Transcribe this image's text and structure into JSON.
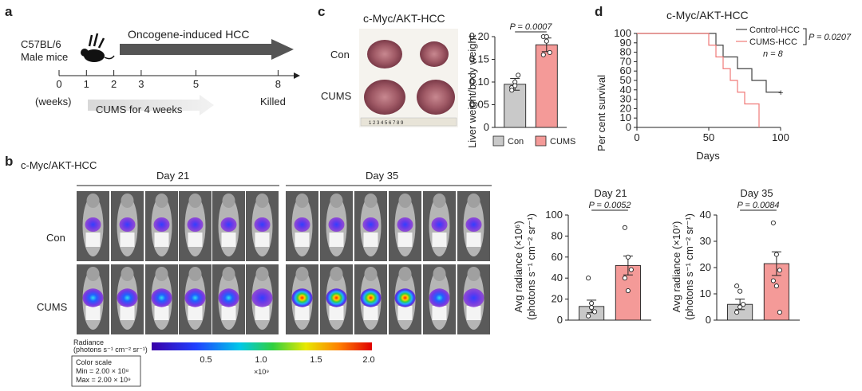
{
  "panel_a": {
    "letter": "a",
    "mouse_line1": "C57BL/6",
    "mouse_line2": "Male mice",
    "oncogene_label": "Oncogene-induced HCC",
    "ticks": [
      "0",
      "1",
      "2",
      "3",
      "5",
      "8"
    ],
    "weeks_label": "(weeks)",
    "cums_label": "CUMS for 4 weeks",
    "killed_label": "Killed"
  },
  "panel_c": {
    "letter": "c",
    "title": "c-Myc/AKT-HCC",
    "row_labels": [
      "Con",
      "CUMS"
    ],
    "ruler_text": "1 2 3 4 5 6 7 8 9",
    "chart_data": {
      "type": "bar",
      "categories": [
        "Con",
        "CUMS"
      ],
      "values": [
        0.095,
        0.182
      ],
      "errors": [
        0.013,
        0.015
      ],
      "points": [
        [
          0.088,
          0.1,
          0.115,
          0.082,
          0.092
        ],
        [
          0.2,
          0.19,
          0.165,
          0.16,
          0.2
        ]
      ],
      "ylabel": "Liver weight/body weight",
      "ylim": [
        0,
        0.2
      ],
      "yticks": [
        "0",
        "0.05",
        "0.10",
        "0.15",
        "0.20"
      ],
      "pvalue": "P = 0.0007",
      "legend": [
        "Con",
        "CUMS"
      ],
      "colors": [
        "#c9c9c9",
        "#f49a98"
      ]
    }
  },
  "panel_d": {
    "letter": "d",
    "title": "c-Myc/AKT-HCC",
    "chart_data": {
      "type": "line",
      "series": [
        {
          "name": "Control-HCC",
          "x": [
            0,
            50,
            55,
            60,
            70,
            80,
            90,
            100
          ],
          "y": [
            100,
            100,
            87.5,
            75,
            62.5,
            50,
            37.5,
            37.5
          ],
          "color": "#444444"
        },
        {
          "name": "CUMS-HCC",
          "x": [
            0,
            45,
            50,
            55,
            60,
            65,
            70,
            75,
            85
          ],
          "y": [
            100,
            100,
            87.5,
            75,
            62.5,
            50,
            37.5,
            25,
            0
          ],
          "color": "#f07a78"
        }
      ],
      "xlabel": "Days",
      "ylabel": "Per cent survival",
      "xlim": [
        0,
        100
      ],
      "ylim": [
        0,
        100
      ],
      "xticks": [
        "0",
        "50",
        "100"
      ],
      "yticks": [
        "0",
        "10",
        "20",
        "30",
        "40",
        "50",
        "60",
        "70",
        "80",
        "90",
        "100"
      ],
      "pvalue": "P = 0.0207",
      "n_label": "n = 8"
    }
  },
  "panel_b": {
    "letter": "b",
    "title": "c-Myc/AKT-HCC",
    "day21_label": "Day 21",
    "day35_label": "Day 35",
    "row_labels": [
      "Con",
      "CUMS"
    ],
    "colorbar": {
      "label_line1": "Radiance",
      "label_line2": "(photons s⁻¹ cm⁻² sr⁻¹)",
      "ticks": [
        "0.5",
        "1.0",
        "1.5",
        "2.0"
      ],
      "multiplier": "×10⁹",
      "scale_title": "Color scale",
      "scale_min": "Min = 2.00 × 10⁸",
      "scale_max": "Max = 2.00 × 10⁹"
    },
    "charts": [
      {
        "type": "bar",
        "title": "Day 21",
        "categories": [
          "Con",
          "CUMS"
        ],
        "values": [
          13,
          52
        ],
        "errors": [
          6,
          9
        ],
        "points": [
          [
            40,
            12,
            8,
            4,
            16
          ],
          [
            88,
            60,
            48,
            40,
            28
          ]
        ],
        "ylabel_line1": "Avg radiance (×10⁶)",
        "ylabel_line2": "(photons s⁻¹ cm⁻² sr⁻¹)",
        "ylim": [
          0,
          100
        ],
        "yticks": [
          "0",
          "20",
          "40",
          "60",
          "80",
          "100"
        ],
        "pvalue": "P = 0.0052"
      },
      {
        "type": "bar",
        "title": "Day 35",
        "categories": [
          "Con",
          "CUMS"
        ],
        "values": [
          6,
          21.5
        ],
        "errors": [
          2,
          4.5
        ],
        "points": [
          [
            13,
            11,
            6,
            3,
            5
          ],
          [
            37,
            25,
            19,
            15,
            13,
            3
          ]
        ],
        "ylabel_line1": "Avg radiance (×10⁷)",
        "ylabel_line2": "(photons s⁻¹ cm⁻² sr⁻¹)",
        "ylim": [
          0,
          40
        ],
        "yticks": [
          "0",
          "10",
          "20",
          "30",
          "40"
        ],
        "pvalue": "P = 0.0084"
      }
    ]
  }
}
